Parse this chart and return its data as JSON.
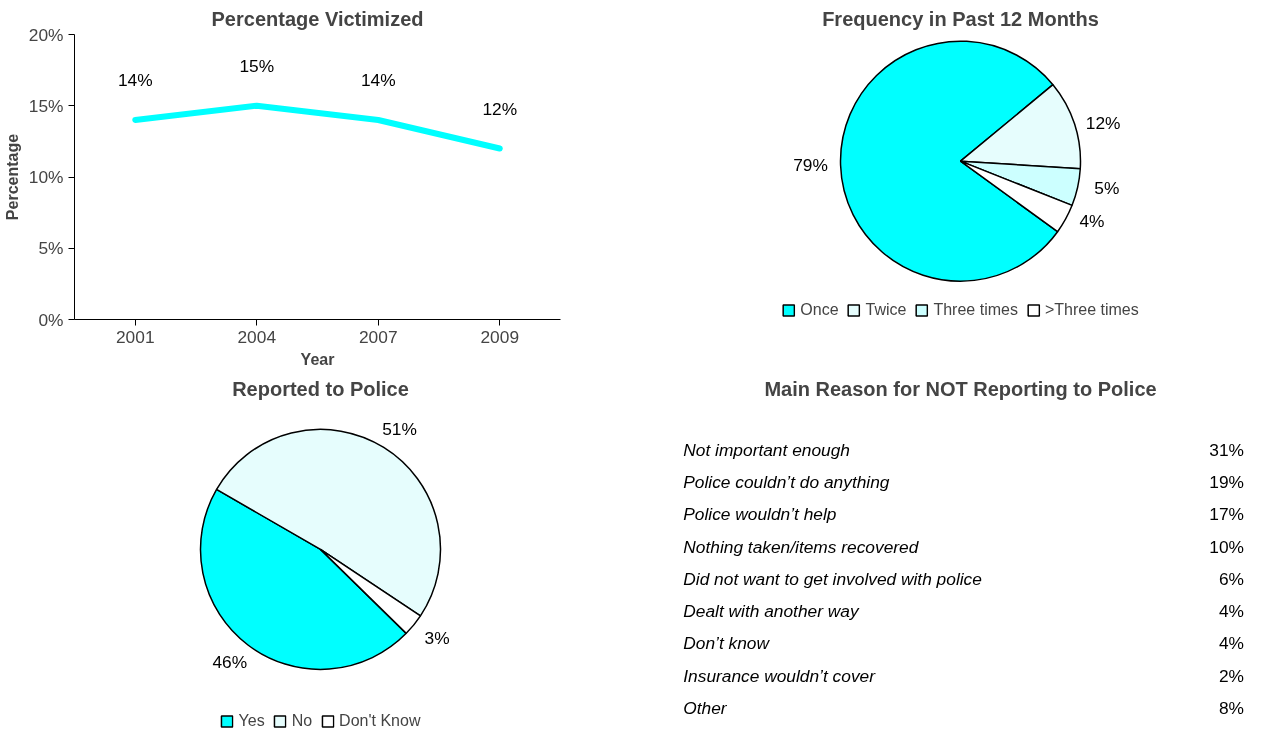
{
  "chart_data": [
    {
      "type": "line",
      "title": "Percentage Victimized",
      "xlabel": "Year",
      "ylabel": "Percentage",
      "categories": [
        "2001",
        "2004",
        "2007",
        "2009"
      ],
      "series": [
        {
          "color": "#00ffff",
          "values": [
            14,
            15,
            14,
            12
          ],
          "value_labels": [
            "14%",
            "15%",
            "14%",
            "12%"
          ]
        }
      ],
      "ylim": [
        0,
        20
      ],
      "yticks": [
        {
          "value": 0,
          "label": "0%"
        },
        {
          "value": 5,
          "label": "5%"
        },
        {
          "value": 10,
          "label": "10%"
        },
        {
          "value": 15,
          "label": "15%"
        },
        {
          "value": 20,
          "label": "20%"
        }
      ],
      "grid": false,
      "legend": false,
      "marker": "none",
      "line_style": "solid"
    },
    {
      "type": "pie",
      "title": "Frequency in Past 12 Months",
      "categories": [
        "Once",
        "Twice",
        "Three times",
        ">Three times"
      ],
      "values": [
        79,
        12,
        5,
        4
      ],
      "value_labels": [
        "79%",
        "12%",
        "5%",
        "4%"
      ],
      "colors": [
        "#00ffff",
        "#e6fdfd",
        "#ccffff",
        "#ffffff"
      ],
      "legend": "bottom"
    },
    {
      "type": "pie",
      "title": "Reported to Police",
      "categories": [
        "Yes",
        "No",
        "Don't Know"
      ],
      "values": [
        46,
        51,
        3
      ],
      "value_labels": [
        "46%",
        "51%",
        "3%"
      ],
      "colors": [
        "#00ffff",
        "#e6fdfd",
        "#ffffff"
      ],
      "legend": "bottom"
    },
    {
      "type": "other",
      "title": "Main Reason for NOT Reporting to Police",
      "categories": [
        "Not important enough",
        "Police couldn’t do anything",
        "Police wouldn’t help",
        "Nothing taken/items recovered",
        "Did not want to get involved with police",
        "Dealt with another way",
        "Don’t know",
        "Insurance wouldn’t cover",
        "Other"
      ],
      "values": [
        31,
        19,
        17,
        10,
        6,
        4,
        4,
        2,
        8
      ],
      "value_labels": [
        "31%",
        "19%",
        "17%",
        "10%",
        "6%",
        "4%",
        "4%",
        "2%",
        "8%"
      ]
    }
  ]
}
